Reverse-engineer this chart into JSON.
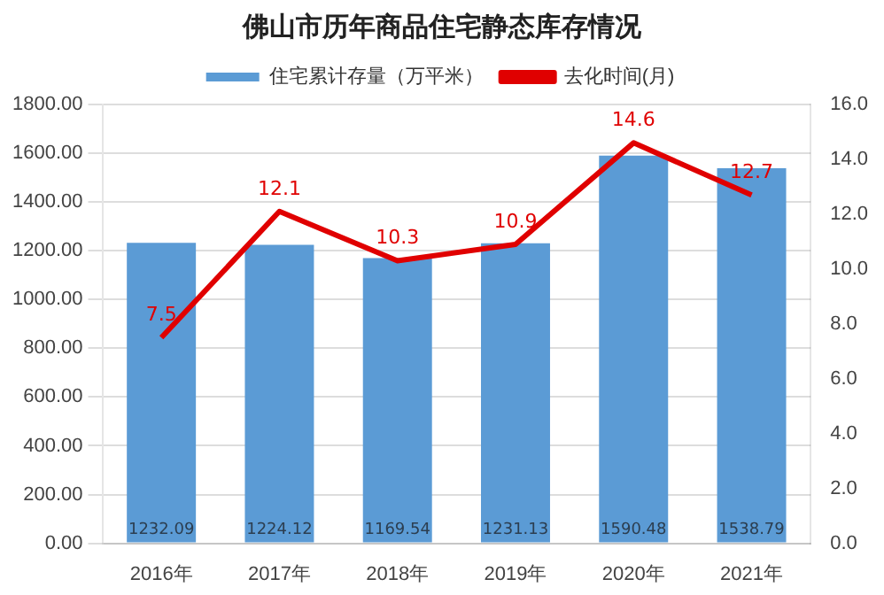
{
  "chart_data": {
    "type": "bar",
    "title": "佛山市历年商品住宅静态库存情况",
    "categories": [
      "2016年",
      "2017年",
      "2018年",
      "2019年",
      "2020年",
      "2021年"
    ],
    "series": [
      {
        "name": "住宅累计存量（万平米）",
        "color": "#5b9bd5",
        "values": [
          1232.09,
          1224.12,
          1169.54,
          1231.13,
          1590.48,
          1538.79
        ]
      },
      {
        "name": "去化时间(月)",
        "type": "line",
        "axis": "y2",
        "color": "#e00000",
        "values": [
          7.5,
          12.1,
          10.3,
          10.9,
          14.6,
          12.7
        ]
      }
    ],
    "ylim": [
      0,
      1800
    ],
    "yticks": [
      {
        "value": 0,
        "label": "0.00"
      },
      {
        "value": 200,
        "label": "200.00"
      },
      {
        "value": 400,
        "label": "400.00"
      },
      {
        "value": 600,
        "label": "600.00"
      },
      {
        "value": 800,
        "label": "800.00"
      },
      {
        "value": 1000,
        "label": "1000.00"
      },
      {
        "value": 1200,
        "label": "1200.00"
      },
      {
        "value": 1400,
        "label": "1400.00"
      },
      {
        "value": 1600,
        "label": "1600.00"
      },
      {
        "value": 1800,
        "label": "1800.00"
      }
    ],
    "y2lim": [
      0,
      16
    ],
    "y2ticks": [
      {
        "value": 0,
        "label": "0.0"
      },
      {
        "value": 2,
        "label": "2.0"
      },
      {
        "value": 4,
        "label": "4.0"
      },
      {
        "value": 6,
        "label": "6.0"
      },
      {
        "value": 8,
        "label": "8.0"
      },
      {
        "value": 10,
        "label": "10.0"
      },
      {
        "value": 12,
        "label": "12.0"
      },
      {
        "value": 14,
        "label": "14.0"
      },
      {
        "value": 16,
        "label": "16.0"
      }
    ],
    "grid": "y",
    "legend": "top",
    "marker": "none",
    "line_style": "solid",
    "data_labels": true
  }
}
